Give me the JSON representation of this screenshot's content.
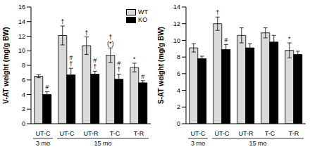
{
  "chart_data": [
    {
      "type": "bar",
      "y_label": "V-AT weight (mg/g BW)",
      "categories": [
        "UT-C",
        "UT-C",
        "UT-R",
        "T-C",
        "T-R"
      ],
      "groups": [
        {
          "label": "3 mo",
          "size": 1
        },
        {
          "label": "15 mo",
          "size": 4
        }
      ],
      "ylim": [
        0,
        16
      ],
      "yticks": [
        0,
        2,
        4,
        6,
        8,
        10,
        12,
        14,
        16
      ],
      "legend": "upper right",
      "series": [
        {
          "name": "WT",
          "color": "#d9d9d9",
          "values": [
            6.5,
            12.1,
            10.7,
            9.4,
            7.7
          ],
          "errors": [
            0.2,
            1.3,
            1.2,
            1.0,
            0.6
          ],
          "annotations": [
            null,
            [
              "†"
            ],
            [
              "†"
            ],
            [
              "†",
              "(*)"
            ],
            [
              "*"
            ]
          ]
        },
        {
          "name": "KO",
          "color": "#000000",
          "values": [
            4.0,
            6.7,
            6.8,
            6.1,
            5.6
          ],
          "errors": [
            0.4,
            0.9,
            0.4,
            0.7,
            0.3
          ],
          "annotations": [
            [
              "#"
            ],
            [
              "#",
              "†"
            ],
            [
              "#",
              "†"
            ],
            [
              "#",
              "†"
            ],
            [
              "#"
            ]
          ]
        }
      ]
    },
    {
      "type": "bar",
      "y_label": "S-AT weight (mg/g BW)",
      "categories": [
        "UT-C",
        "UT-C",
        "UT-R",
        "T-C",
        "T-R"
      ],
      "groups": [
        {
          "label": "3 mo",
          "size": 1
        },
        {
          "label": "15 mo",
          "size": 4
        }
      ],
      "ylim": [
        0,
        14
      ],
      "yticks": [
        0,
        2,
        4,
        6,
        8,
        10,
        12,
        14
      ],
      "series": [
        {
          "name": "WT",
          "color": "#d9d9d9",
          "values": [
            9.1,
            12.0,
            10.6,
            10.9,
            8.8
          ],
          "errors": [
            0.5,
            0.8,
            0.9,
            0.6,
            0.9
          ],
          "annotations": [
            null,
            [
              "†"
            ],
            null,
            null,
            [
              "*"
            ]
          ]
        },
        {
          "name": "KO",
          "color": "#000000",
          "values": [
            7.8,
            8.9,
            9.1,
            9.8,
            8.3
          ],
          "errors": [
            0.3,
            0.6,
            0.5,
            0.8,
            0.4
          ],
          "annotations": [
            null,
            [
              "#"
            ],
            null,
            null,
            null
          ]
        }
      ]
    }
  ]
}
